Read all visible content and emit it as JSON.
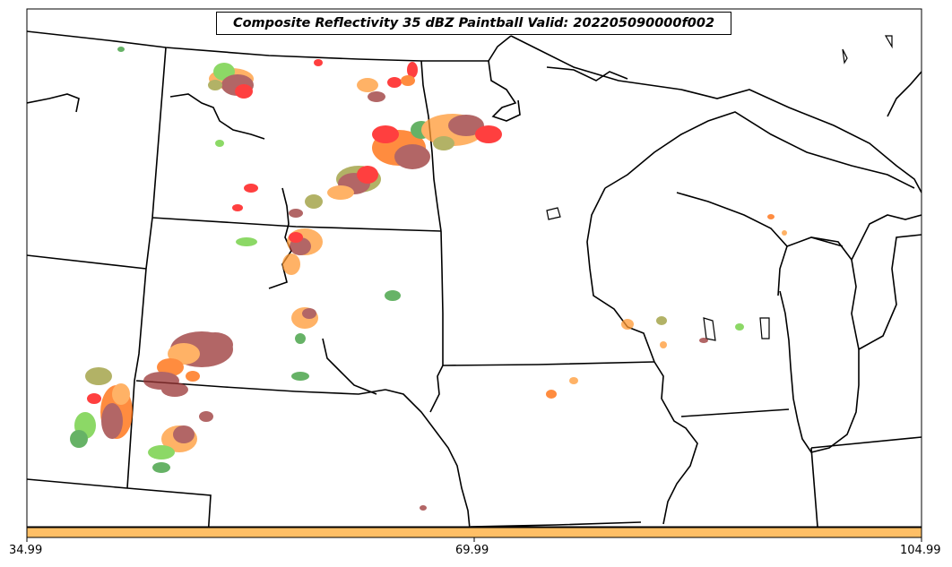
{
  "title": "Composite Reflectivity 35 dBZ Paintball Valid: 202205090000f002",
  "colorbar": {
    "color": "#ffbf66",
    "tick_labels": [
      "34.99",
      "69.99",
      "104.99"
    ]
  },
  "paintball_colors": [
    "#ff0000",
    "#ff6600",
    "#ff9933",
    "#993333",
    "#66cc33",
    "#339933",
    "#999933",
    "#336633"
  ],
  "map": {
    "border_color": "#000000",
    "background": "#ffffff"
  }
}
